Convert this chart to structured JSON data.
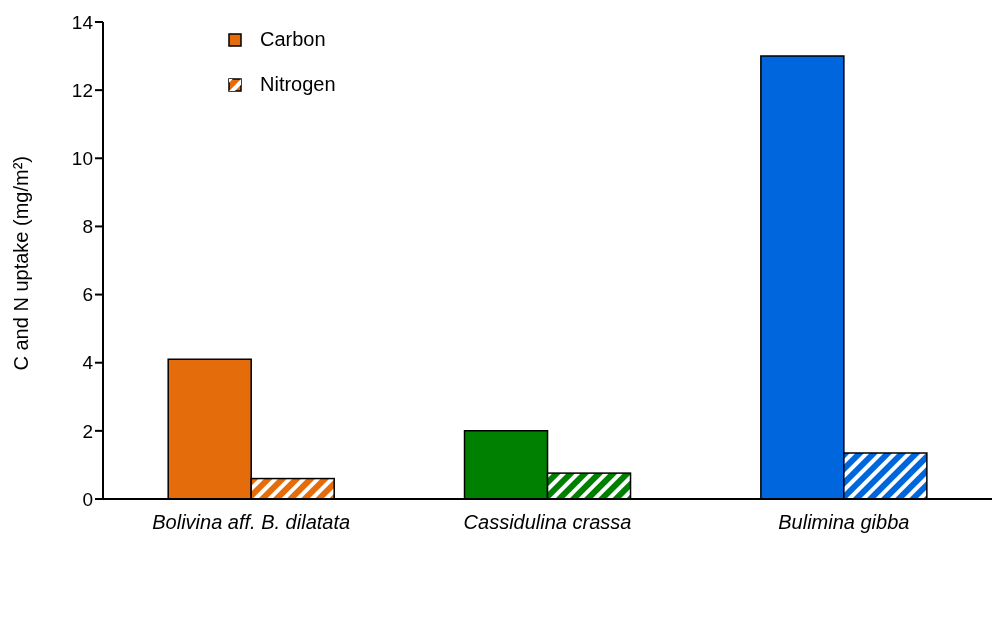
{
  "chart_data": {
    "type": "bar",
    "ylabel": "C and N uptake (mg/m²)",
    "categories": [
      "Bolivina aff. B. dilatata",
      "Cassidulina crassa",
      "Bulimina gibba"
    ],
    "series": [
      {
        "name": "Carbon",
        "color": "#e46c0a",
        "colors": [
          "#e46c0a",
          "#008000",
          "#0066dd"
        ],
        "values": [
          4.1,
          2.0,
          13.0
        ]
      },
      {
        "name": "Nitrogen",
        "color": "#e46c0a",
        "colors": [
          "#e46c0a",
          "#008000",
          "#0066dd"
        ],
        "values": [
          0.6,
          0.76,
          1.35
        ]
      }
    ],
    "ylim": [
      0,
      14
    ],
    "yticks": [
      0,
      2,
      4,
      6,
      8,
      10,
      12,
      14
    ],
    "grid": false,
    "legend": "top left"
  }
}
